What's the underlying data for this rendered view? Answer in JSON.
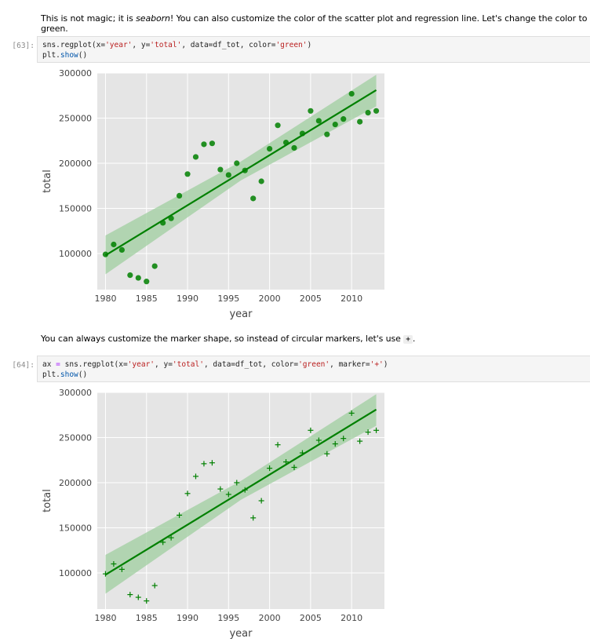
{
  "cells": [
    {
      "markdown_parts": [
        "This is not magic; it is ",
        "seaborn",
        "! You can also customize the color of the scatter plot and regression line. Let's change the color to green."
      ],
      "prompt": "[63]:",
      "code": {
        "line1": {
          "a": "sns.regplot(x=",
          "b": "'year'",
          "c": ", y=",
          "d": "'total'",
          "e": ", data=df_tot, color=",
          "f": "'green'",
          "g": ")"
        },
        "line2": {
          "a": "plt.",
          "b": "show",
          "c": "()"
        }
      }
    },
    {
      "markdown_parts": [
        "You can always customize the marker shape, so instead of circular markers, let's use ",
        "+",
        "."
      ],
      "prompt": "[64]:",
      "code": {
        "line1": {
          "pre": "ax ",
          "eq": "=",
          "a": " sns.regplot(x=",
          "b": "'year'",
          "c": ", y=",
          "d": "'total'",
          "e": ", data=df_tot, color=",
          "f": "'green'",
          "h": ", marker=",
          "i": "'+'",
          "g": ")"
        },
        "line2": {
          "a": "plt.",
          "b": "show",
          "c": "()"
        }
      }
    }
  ],
  "colors": {
    "accent": "#008000",
    "band": "#9fce9f",
    "plot_bg": "#e5e5e5"
  },
  "chart_data": [
    {
      "type": "scatter",
      "title": "",
      "xlabel": "year",
      "ylabel": "total",
      "xlim": [
        1979,
        2014
      ],
      "ylim": [
        60000,
        300000
      ],
      "x_ticks": [
        1980,
        1985,
        1990,
        1995,
        2000,
        2005,
        2010
      ],
      "y_ticks": [
        100000,
        150000,
        200000,
        250000,
        300000
      ],
      "marker": "o",
      "x": [
        1980,
        1981,
        1982,
        1983,
        1984,
        1985,
        1986,
        1987,
        1988,
        1989,
        1990,
        1991,
        1992,
        1993,
        1994,
        1995,
        1996,
        1997,
        1998,
        1999,
        2000,
        2001,
        2002,
        2003,
        2004,
        2005,
        2006,
        2007,
        2008,
        2009,
        2010,
        2011,
        2012,
        2013
      ],
      "y": [
        99000,
        110000,
        104000,
        76000,
        73000,
        69000,
        86000,
        134000,
        139000,
        164000,
        188000,
        207000,
        221000,
        222000,
        193000,
        187000,
        200000,
        192000,
        161000,
        180000,
        216000,
        242000,
        223000,
        217000,
        233000,
        258000,
        247000,
        232000,
        243000,
        249000,
        277000,
        246000,
        256000,
        258000
      ],
      "regression": {
        "x": [
          1980,
          2013
        ],
        "y": [
          98000,
          281000
        ]
      },
      "ci_band": {
        "x": [
          1980,
          1996.5,
          2013
        ],
        "lower": [
          77000,
          181000,
          263000
        ],
        "upper": [
          120000,
          202000,
          298000
        ]
      }
    },
    {
      "type": "scatter",
      "title": "",
      "xlabel": "year",
      "ylabel": "total",
      "xlim": [
        1979,
        2014
      ],
      "ylim": [
        60000,
        300000
      ],
      "x_ticks": [
        1980,
        1985,
        1990,
        1995,
        2000,
        2005,
        2010
      ],
      "y_ticks": [
        100000,
        150000,
        200000,
        250000,
        300000
      ],
      "marker": "+",
      "x": [
        1980,
        1981,
        1982,
        1983,
        1984,
        1985,
        1986,
        1987,
        1988,
        1989,
        1990,
        1991,
        1992,
        1993,
        1994,
        1995,
        1996,
        1997,
        1998,
        1999,
        2000,
        2001,
        2002,
        2003,
        2004,
        2005,
        2006,
        2007,
        2008,
        2009,
        2010,
        2011,
        2012,
        2013
      ],
      "y": [
        99000,
        110000,
        104000,
        76000,
        73000,
        69000,
        86000,
        134000,
        139000,
        164000,
        188000,
        207000,
        221000,
        222000,
        193000,
        187000,
        200000,
        192000,
        161000,
        180000,
        216000,
        242000,
        223000,
        217000,
        233000,
        258000,
        247000,
        232000,
        243000,
        249000,
        277000,
        246000,
        256000,
        258000
      ],
      "regression": {
        "x": [
          1980,
          2013
        ],
        "y": [
          98000,
          281000
        ]
      },
      "ci_band": {
        "x": [
          1980,
          1996.5,
          2013
        ],
        "lower": [
          77000,
          181000,
          263000
        ],
        "upper": [
          120000,
          202000,
          298000
        ]
      }
    }
  ]
}
